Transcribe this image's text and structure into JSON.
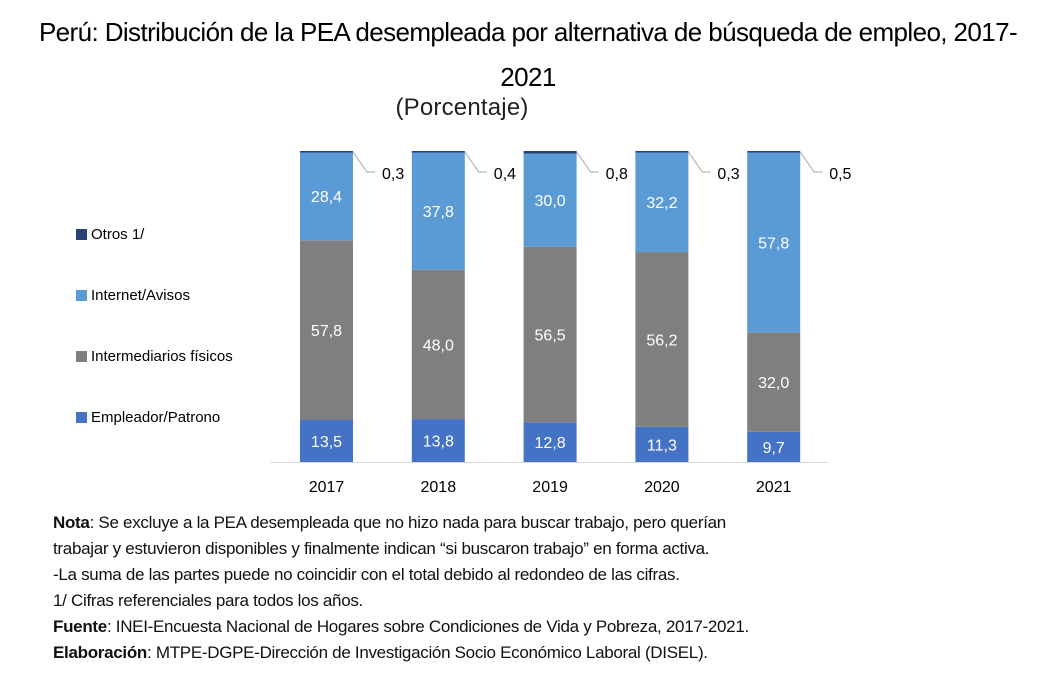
{
  "chart_data": {
    "type": "bar",
    "stacked": true,
    "title": "Perú: Distribución de la PEA desempleada por alternativa de búsqueda de empleo, 2017-2021",
    "title_line1": "Perú: Distribución de la PEA desempleada por alternativa de búsqueda de empleo, 2017-",
    "title_line2": "2021",
    "subtitle": "(Porcentaje)",
    "xlabel": "",
    "ylabel": "",
    "ylim": [
      0,
      100
    ],
    "grid": false,
    "legend_position": "left",
    "categories": [
      "2017",
      "2018",
      "2019",
      "2020",
      "2021"
    ],
    "series": [
      {
        "name": "Empleador/Patrono",
        "color": "#4472C4",
        "values": [
          13.5,
          13.8,
          12.8,
          11.3,
          9.7
        ],
        "labels": [
          "13,5",
          "13,8",
          "12,8",
          "11,3",
          "9,7"
        ]
      },
      {
        "name": "Intermediarios físicos",
        "color": "#7F7F7F",
        "values": [
          57.8,
          48.0,
          56.5,
          56.2,
          32.0
        ],
        "labels": [
          "57,8",
          "48,0",
          "56,5",
          "56,2",
          "32,0"
        ]
      },
      {
        "name": "Internet/Avisos",
        "color": "#5B9BD5",
        "values": [
          28.4,
          37.8,
          30.0,
          32.2,
          57.8
        ],
        "labels": [
          "28,4",
          "37,8",
          "30,0",
          "32,2",
          "57,8"
        ]
      },
      {
        "name": "Otros 1/",
        "color": "#264478",
        "values": [
          0.3,
          0.4,
          0.8,
          0.3,
          0.5
        ],
        "labels": [
          "0,3",
          "0,4",
          "0,8",
          "0,3",
          "0,5"
        ]
      }
    ],
    "legend": [
      "Otros 1/",
      "Internet/Avisos",
      "Intermediarios físicos",
      "Empleador/Patrono"
    ]
  },
  "notes": {
    "nota_label": "Nota",
    "nota_text_1": ": Se excluye a la PEA desempleada que no hizo nada para buscar trabajo, pero querían",
    "nota_text_2": "trabajar y estuvieron disponibles y finalmente indican “si buscaron trabajo” en forma activa.",
    "line_3": "-La suma de las partes puede no coincidir con el total debido al redondeo de las cifras.",
    "line_4": "1/ Cifras referenciales para todos los años.",
    "fuente_label": "Fuente",
    "fuente_text": ": INEI-Encuesta Nacional de Hogares sobre Condiciones de Vida y Pobreza, 2017-2021.",
    "elaboracion_label": "Elaboración",
    "elaboracion_text": ": MTPE-DGPE-Dirección de Investigación Socio Económico Laboral (DISEL)."
  }
}
